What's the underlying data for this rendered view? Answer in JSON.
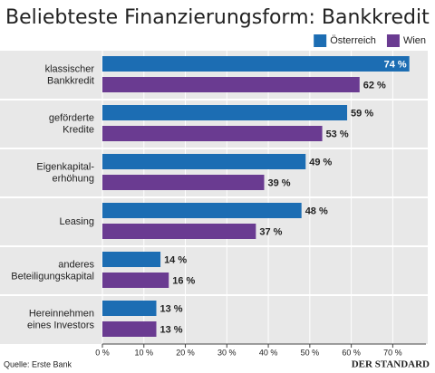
{
  "chart_data": {
    "type": "hbar",
    "title": "Beliebteste Finanzierungsform: Bankkredit",
    "categories": [
      [
        "klassischer",
        "Bankkredit"
      ],
      [
        "geförderte",
        "Kredite"
      ],
      [
        "Eigenkapital-",
        "erhöhung"
      ],
      [
        "Leasing"
      ],
      [
        "anderes",
        "Beteiligungskapital"
      ],
      [
        "Hereinnehmen",
        "eines Investors"
      ]
    ],
    "series": [
      {
        "name": "Österreich",
        "color": "#1c6db3",
        "values": [
          74,
          59,
          49,
          48,
          14,
          13
        ],
        "value_labels": [
          "74 %",
          "59 %",
          "49 %",
          "48 %",
          "14 %",
          "13 %"
        ]
      },
      {
        "name": "Wien",
        "color": "#6a3b91",
        "values": [
          62,
          53,
          39,
          37,
          16,
          13
        ],
        "value_labels": [
          "62 %",
          "53 %",
          "39 %",
          "37 %",
          "16 %",
          "13 %"
        ]
      }
    ],
    "xlim": [
      0,
      78
    ],
    "xticks": [
      {
        "value": 0,
        "label": "0 %"
      },
      {
        "value": 10,
        "label": "10 %"
      },
      {
        "value": 20,
        "label": "20 %"
      },
      {
        "value": 30,
        "label": "30 %"
      },
      {
        "value": 40,
        "label": "40 %"
      },
      {
        "value": 50,
        "label": "50 %"
      },
      {
        "value": 60,
        "label": "60 %"
      },
      {
        "value": 70,
        "label": "70 %"
      }
    ],
    "grid": true,
    "legend": "top-right",
    "source": "Quelle: Erste Bank",
    "publisher": "DER STANDARD"
  }
}
